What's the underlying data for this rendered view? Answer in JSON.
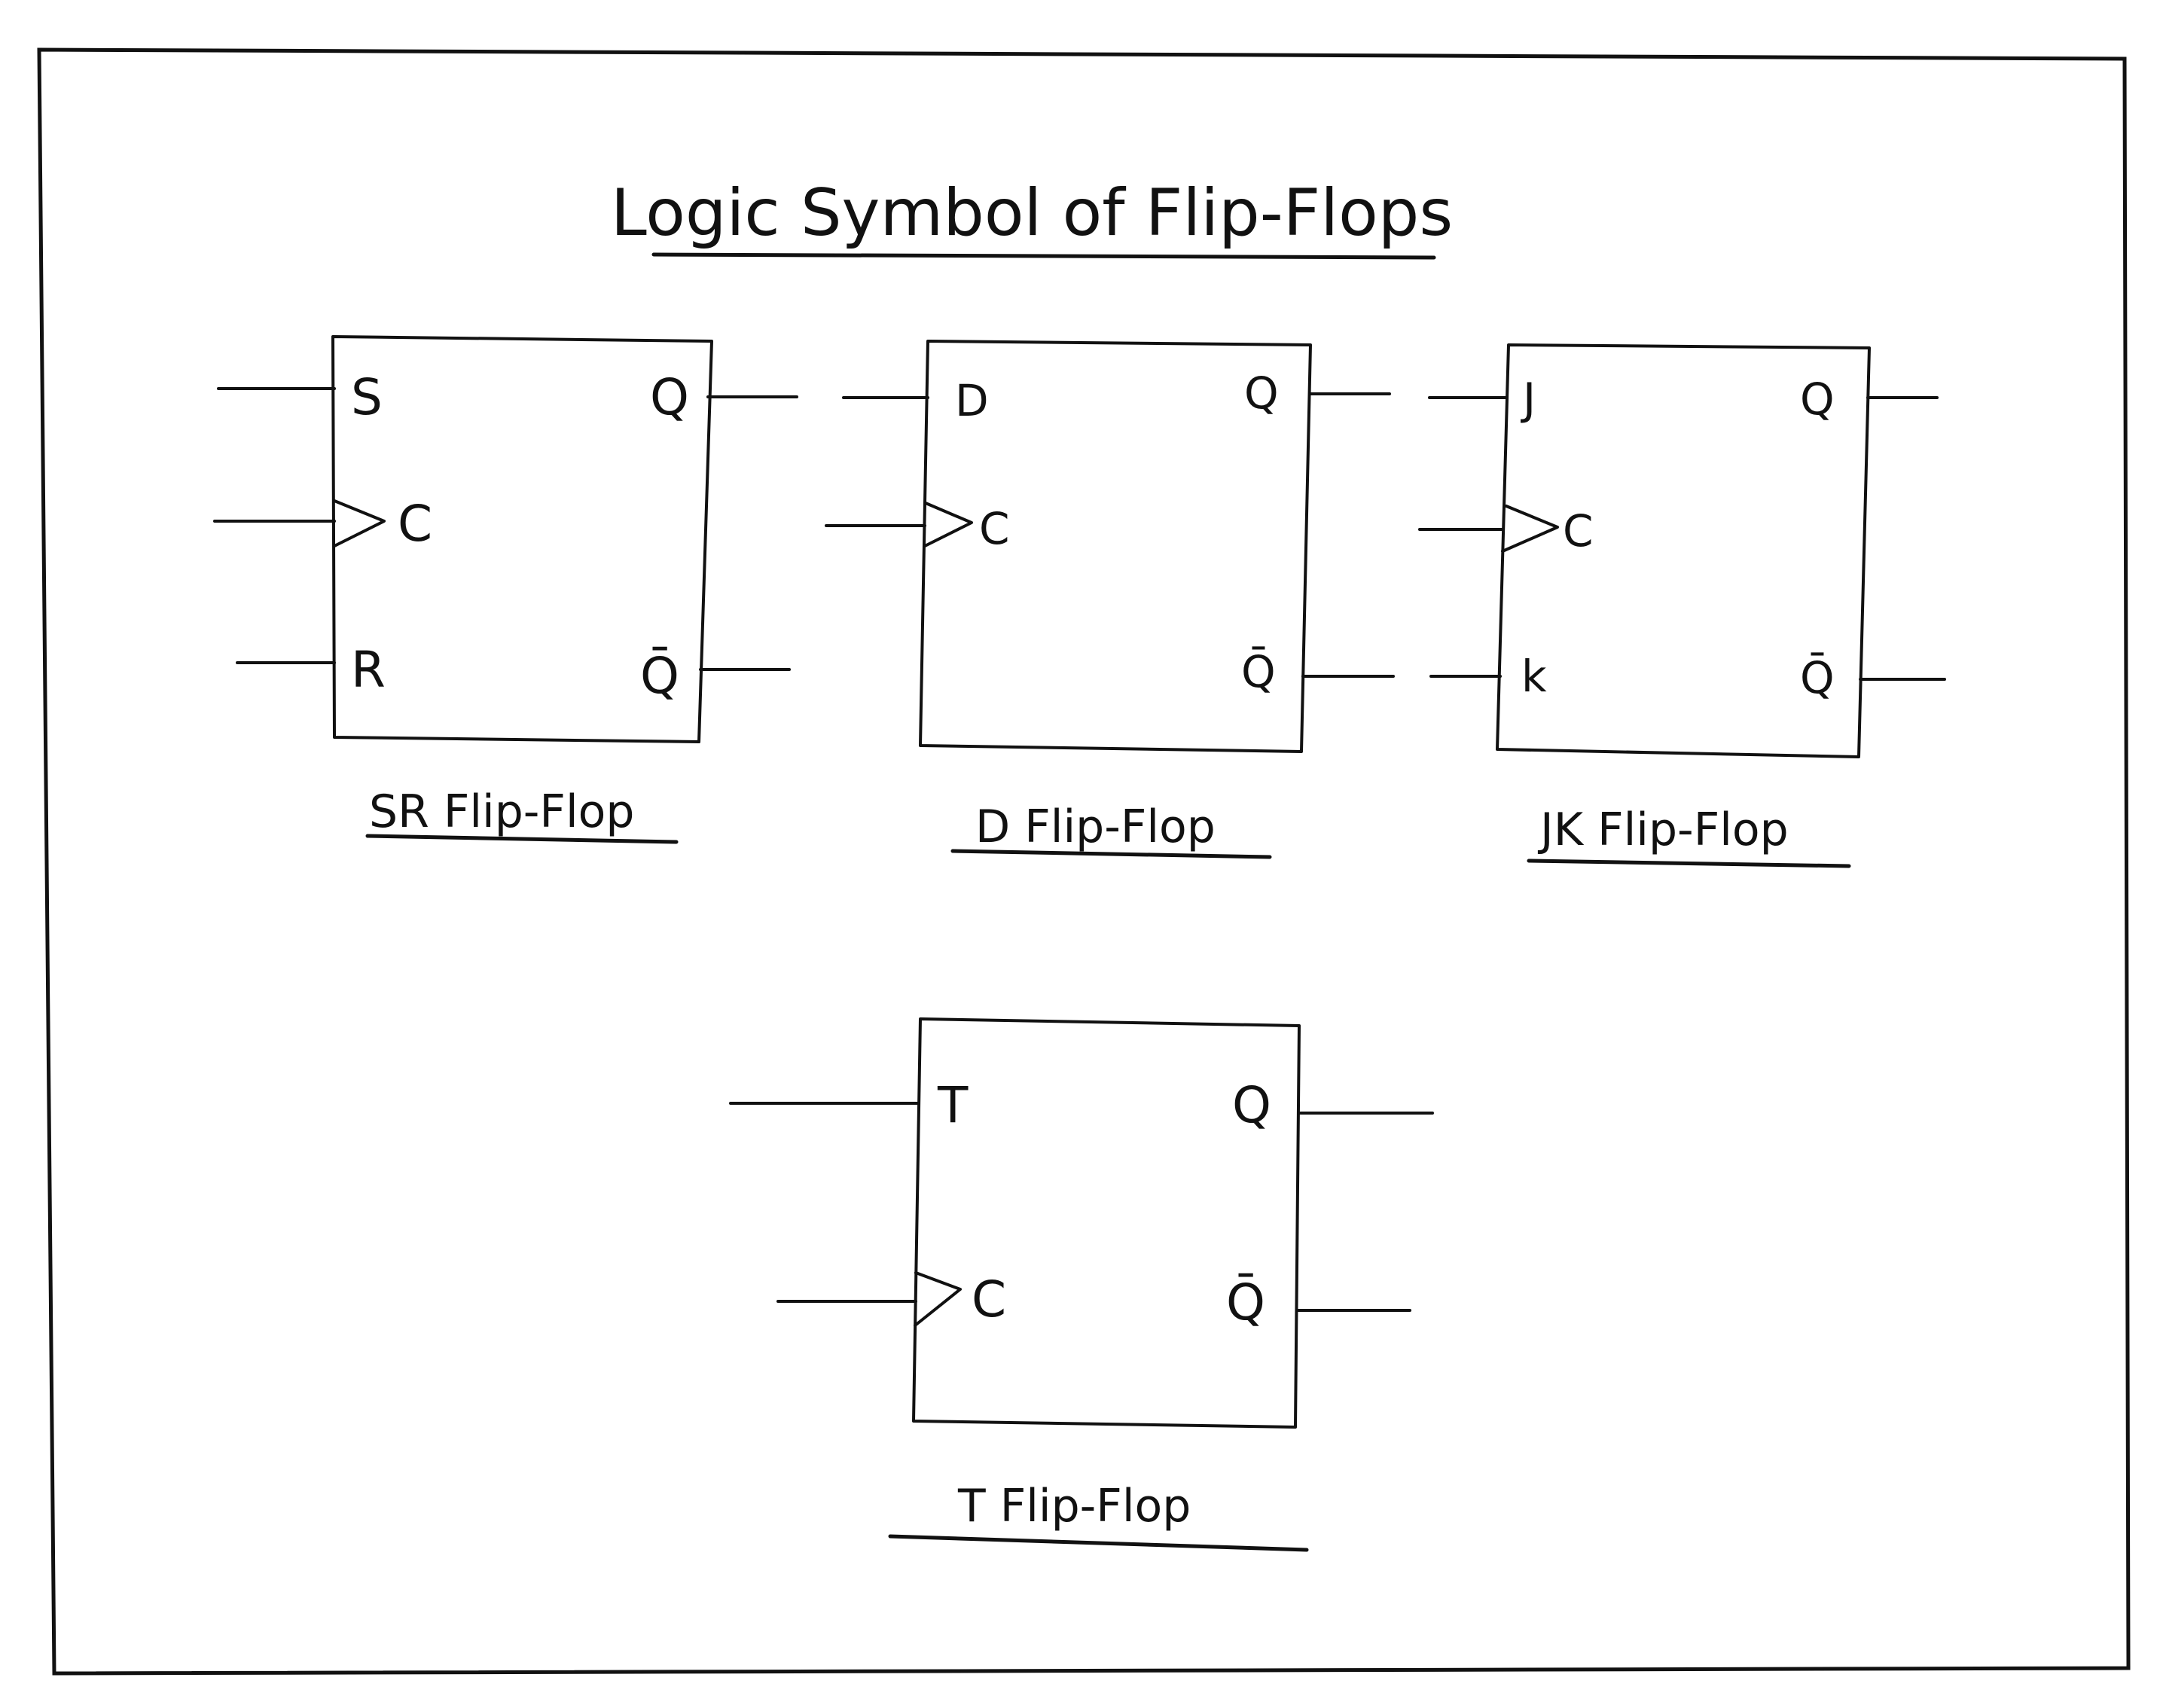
{
  "title": "Logic Symbol of Flip-Flops",
  "flip_flops": [
    {
      "name": "SR Flip-Flop",
      "inputs": [
        "S",
        "C",
        "R"
      ],
      "outputs": [
        "Q",
        "Q̄"
      ]
    },
    {
      "name": "D Flip-Flop",
      "inputs": [
        "D",
        "C"
      ],
      "outputs": [
        "Q",
        "Q̄"
      ]
    },
    {
      "name": "JK Flip-Flop",
      "inputs": [
        "J",
        "C",
        "k"
      ],
      "outputs": [
        "Q",
        "Q̄"
      ]
    },
    {
      "name": "T Flip-Flop",
      "inputs": [
        "T",
        "C"
      ],
      "outputs": [
        "Q",
        "Q̄"
      ]
    }
  ]
}
